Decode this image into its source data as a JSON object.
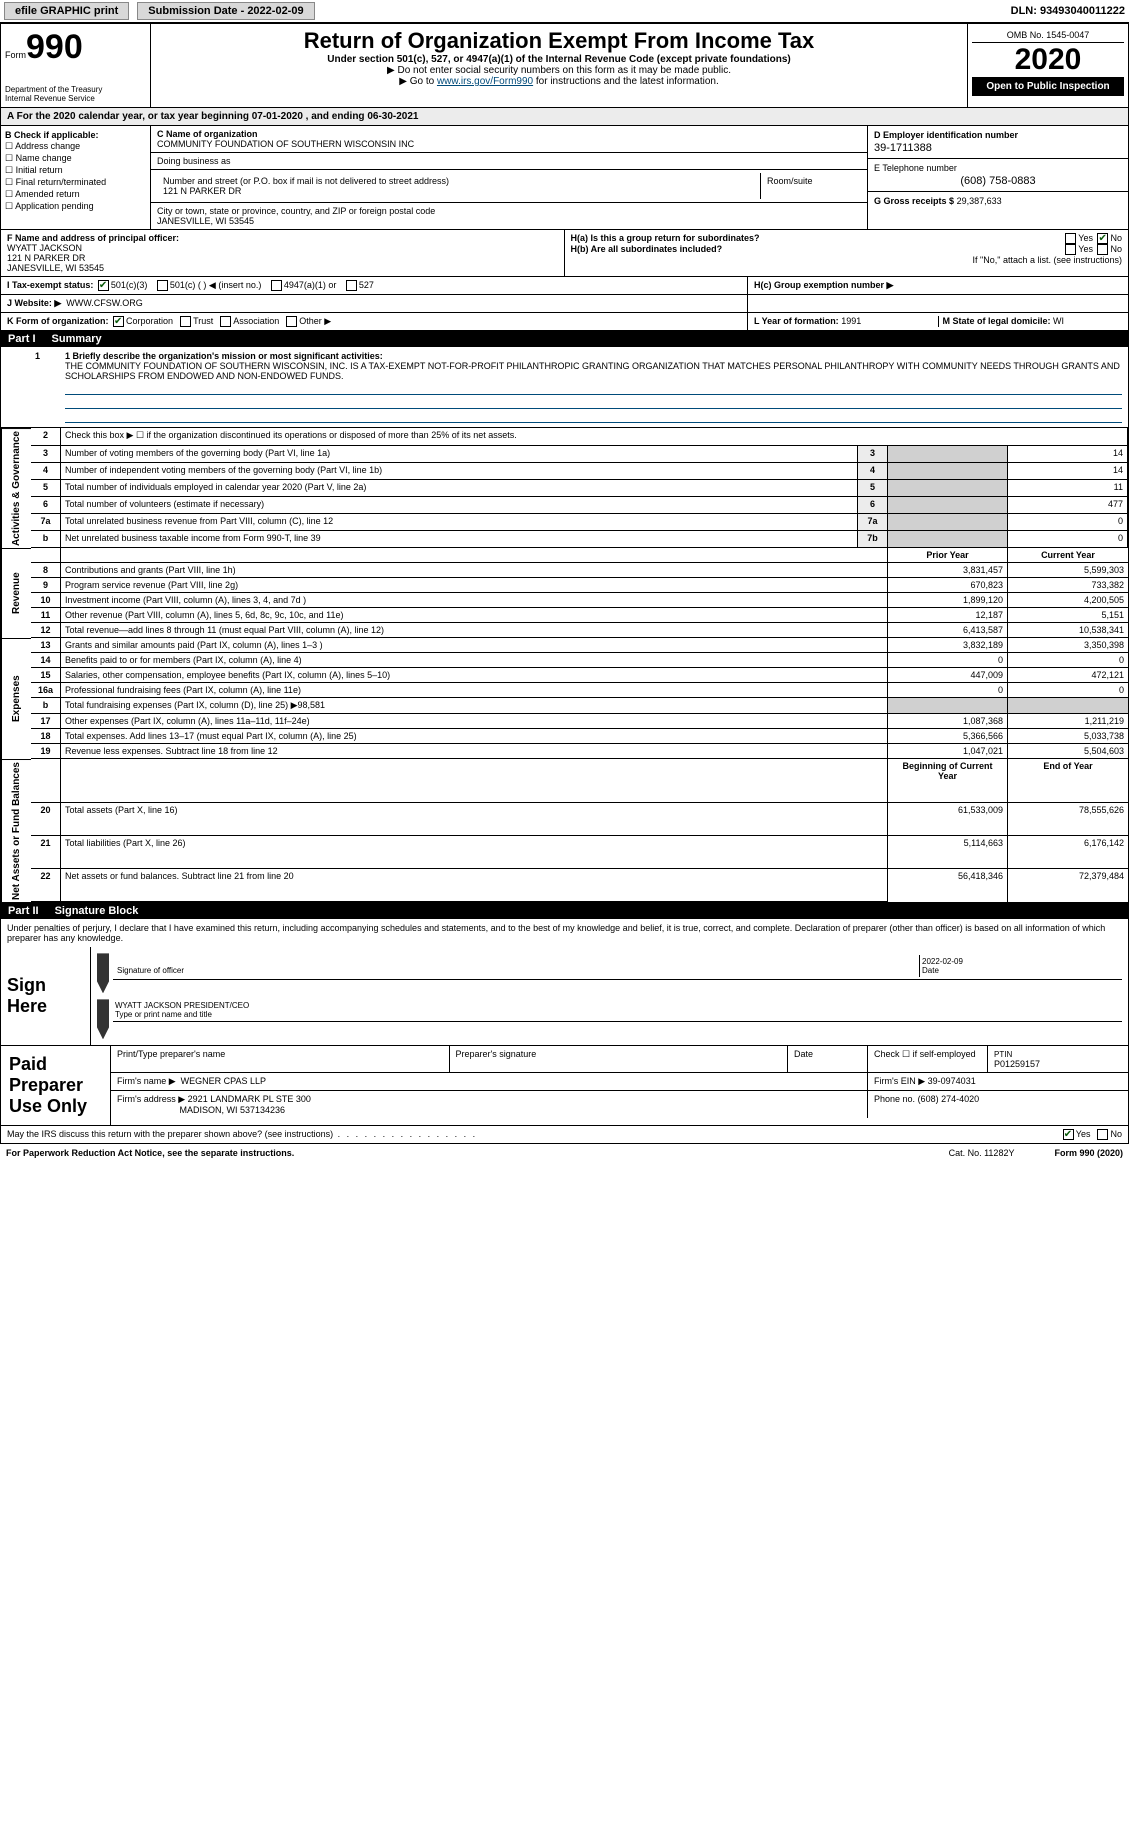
{
  "topbar": {
    "efile_label": "efile GRAPHIC print",
    "submission_label": "Submission Date - 2022-02-09",
    "dln": "DLN: 93493040011222"
  },
  "header": {
    "form_prefix": "Form",
    "form_number": "990",
    "title": "Return of Organization Exempt From Income Tax",
    "subtitle": "Under section 501(c), 527, or 4947(a)(1) of the Internal Revenue Code (except private foundations)",
    "note1": "▶ Do not enter social security numbers on this form as it may be made public.",
    "note2_pre": "▶ Go to ",
    "note2_link": "www.irs.gov/Form990",
    "note2_post": " for instructions and the latest information.",
    "dept": "Department of the Treasury\nInternal Revenue Service",
    "omb": "OMB No. 1545-0047",
    "year": "2020",
    "open": "Open to Public Inspection"
  },
  "period": {
    "line": "A For the 2020 calendar year, or tax year beginning 07-01-2020   , and ending 06-30-2021"
  },
  "sectionB": {
    "title": "B Check if applicable:",
    "items": [
      "Address change",
      "Name change",
      "Initial return",
      "Final return/terminated",
      "Amended return",
      "Application pending"
    ]
  },
  "sectionC": {
    "name_label": "C Name of organization",
    "name": "COMMUNITY FOUNDATION OF SOUTHERN WISCONSIN INC",
    "dba_label": "Doing business as",
    "addr_label": "Number and street (or P.O. box if mail is not delivered to street address)",
    "room_label": "Room/suite",
    "addr": "121 N PARKER DR",
    "city_label": "City or town, state or province, country, and ZIP or foreign postal code",
    "city": "JANESVILLE, WI  53545"
  },
  "sectionD": {
    "label": "D Employer identification number",
    "value": "39-1711388"
  },
  "sectionE": {
    "label": "E Telephone number",
    "value": "(608) 758-0883"
  },
  "sectionG": {
    "label": "G Gross receipts $",
    "value": "29,387,633"
  },
  "sectionF": {
    "label": "F Name and address of principal officer:",
    "name": "WYATT JACKSON",
    "addr1": "121 N PARKER DR",
    "addr2": "JANESVILLE, WI  53545"
  },
  "sectionH": {
    "a": "H(a)  Is this a group return for subordinates?",
    "b": "H(b)  Are all subordinates included?",
    "ifno": "If \"No,\" attach a list. (see instructions)",
    "c": "H(c)  Group exemption number ▶",
    "yes": "Yes",
    "no": "No",
    "a_yes": false,
    "a_no": true,
    "b_yes": false,
    "b_no": false
  },
  "sectionI": {
    "label": "I   Tax-exempt status:",
    "c3": "501(c)(3)",
    "c": "501(c) (   ) ◀ (insert no.)",
    "a1": "4947(a)(1) or",
    "s527": "527",
    "c3_checked": true
  },
  "sectionJ": {
    "label": "J  Website: ▶",
    "value": "WWW.CFSW.ORG"
  },
  "sectionK": {
    "label": "K Form of organization:",
    "corp": "Corporation",
    "trust": "Trust",
    "assoc": "Association",
    "other": "Other ▶",
    "corp_checked": true
  },
  "sectionL": {
    "label": "L Year of formation:",
    "value": "1991"
  },
  "sectionM": {
    "label": "M State of legal domicile:",
    "value": "WI"
  },
  "partI": {
    "num": "Part I",
    "title": "Summary"
  },
  "mission": {
    "line1_label": "1  Briefly describe the organization's mission or most significant activities:",
    "text": "THE COMMUNITY FOUNDATION OF SOUTHERN WISCONSIN, INC. IS A TAX-EXEMPT NOT-FOR-PROFIT PHILANTHROPIC GRANTING ORGANIZATION THAT MATCHES PERSONAL PHILANTHROPY WITH COMMUNITY NEEDS THROUGH GRANTS AND SCHOLARSHIPS FROM ENDOWED AND NON-ENDOWED FUNDS."
  },
  "summary": {
    "side_labels": [
      "Activities & Governance",
      "Revenue",
      "Expenses",
      "Net Assets or Fund Balances"
    ],
    "col_prior": "Prior Year",
    "col_current": "Current Year",
    "col_begin": "Beginning of Current Year",
    "col_end": "End of Year",
    "rows_gov": [
      {
        "n": "2",
        "d": "Check this box ▶ ☐  if the organization discontinued its operations or disposed of more than 25% of its net assets.",
        "b": "",
        "p": "",
        "c": ""
      },
      {
        "n": "3",
        "d": "Number of voting members of the governing body (Part VI, line 1a)",
        "b": "3",
        "p": "",
        "c": "14"
      },
      {
        "n": "4",
        "d": "Number of independent voting members of the governing body (Part VI, line 1b)",
        "b": "4",
        "p": "",
        "c": "14"
      },
      {
        "n": "5",
        "d": "Total number of individuals employed in calendar year 2020 (Part V, line 2a)",
        "b": "5",
        "p": "",
        "c": "11"
      },
      {
        "n": "6",
        "d": "Total number of volunteers (estimate if necessary)",
        "b": "6",
        "p": "",
        "c": "477"
      },
      {
        "n": "7a",
        "d": "Total unrelated business revenue from Part VIII, column (C), line 12",
        "b": "7a",
        "p": "",
        "c": "0"
      },
      {
        "n": "b",
        "d": "Net unrelated business taxable income from Form 990-T, line 39",
        "b": "7b",
        "p": "",
        "c": "0"
      }
    ],
    "rows_rev": [
      {
        "n": "8",
        "d": "Contributions and grants (Part VIII, line 1h)",
        "p": "3,831,457",
        "c": "5,599,303"
      },
      {
        "n": "9",
        "d": "Program service revenue (Part VIII, line 2g)",
        "p": "670,823",
        "c": "733,382"
      },
      {
        "n": "10",
        "d": "Investment income (Part VIII, column (A), lines 3, 4, and 7d )",
        "p": "1,899,120",
        "c": "4,200,505"
      },
      {
        "n": "11",
        "d": "Other revenue (Part VIII, column (A), lines 5, 6d, 8c, 9c, 10c, and 11e)",
        "p": "12,187",
        "c": "5,151"
      },
      {
        "n": "12",
        "d": "Total revenue—add lines 8 through 11 (must equal Part VIII, column (A), line 12)",
        "p": "6,413,587",
        "c": "10,538,341"
      }
    ],
    "rows_exp": [
      {
        "n": "13",
        "d": "Grants and similar amounts paid (Part IX, column (A), lines 1–3 )",
        "p": "3,832,189",
        "c": "3,350,398"
      },
      {
        "n": "14",
        "d": "Benefits paid to or for members (Part IX, column (A), line 4)",
        "p": "0",
        "c": "0"
      },
      {
        "n": "15",
        "d": "Salaries, other compensation, employee benefits (Part IX, column (A), lines 5–10)",
        "p": "447,009",
        "c": "472,121"
      },
      {
        "n": "16a",
        "d": "Professional fundraising fees (Part IX, column (A), line 11e)",
        "p": "0",
        "c": "0"
      },
      {
        "n": "b",
        "d": "Total fundraising expenses (Part IX, column (D), line 25) ▶98,581",
        "p": "",
        "c": ""
      },
      {
        "n": "17",
        "d": "Other expenses (Part IX, column (A), lines 11a–11d, 11f–24e)",
        "p": "1,087,368",
        "c": "1,211,219"
      },
      {
        "n": "18",
        "d": "Total expenses. Add lines 13–17 (must equal Part IX, column (A), line 25)",
        "p": "5,366,566",
        "c": "5,033,738"
      },
      {
        "n": "19",
        "d": "Revenue less expenses. Subtract line 18 from line 12",
        "p": "1,047,021",
        "c": "5,504,603"
      }
    ],
    "rows_net": [
      {
        "n": "20",
        "d": "Total assets (Part X, line 16)",
        "p": "61,533,009",
        "c": "78,555,626"
      },
      {
        "n": "21",
        "d": "Total liabilities (Part X, line 26)",
        "p": "5,114,663",
        "c": "6,176,142"
      },
      {
        "n": "22",
        "d": "Net assets or fund balances. Subtract line 21 from line 20",
        "p": "56,418,346",
        "c": "72,379,484"
      }
    ]
  },
  "partII": {
    "num": "Part II",
    "title": "Signature Block"
  },
  "sig": {
    "declare": "Under penalties of perjury, I declare that I have examined this return, including accompanying schedules and statements, and to the best of my knowledge and belief, it is true, correct, and complete. Declaration of preparer (other than officer) is based on all information of which preparer has any knowledge.",
    "sign_here": "Sign Here",
    "sig_officer": "Signature of officer",
    "date_label": "Date",
    "date_val": "2022-02-09",
    "name_title": "WYATT JACKSON  PRESIDENT/CEO",
    "type_label": "Type or print name and title"
  },
  "preparer": {
    "label": "Paid Preparer Use Only",
    "print_label": "Print/Type preparer's name",
    "sig_label": "Preparer's signature",
    "date_label": "Date",
    "check_label": "Check ☐ if self-employed",
    "ptin_label": "PTIN",
    "ptin": "P01259157",
    "firm_name_label": "Firm's name    ▶",
    "firm_name": "WEGNER CPAS LLP",
    "firm_ein_label": "Firm's EIN ▶",
    "firm_ein": "39-0974031",
    "firm_addr_label": "Firm's address ▶",
    "firm_addr1": "2921 LANDMARK PL STE 300",
    "firm_addr2": "MADISON, WI  537134236",
    "phone_label": "Phone no.",
    "phone": "(608) 274-4020"
  },
  "discuss": {
    "text": "May the IRS discuss this return with the preparer shown above? (see instructions)",
    "yes": "Yes",
    "no": "No",
    "yes_checked": true
  },
  "footer": {
    "pra": "For Paperwork Reduction Act Notice, see the separate instructions.",
    "cat": "Cat. No. 11282Y",
    "form": "Form 990 (2020)"
  },
  "colors": {
    "link": "#004b7a",
    "header_bg": "#000000",
    "shade": "#d0d0d0"
  }
}
